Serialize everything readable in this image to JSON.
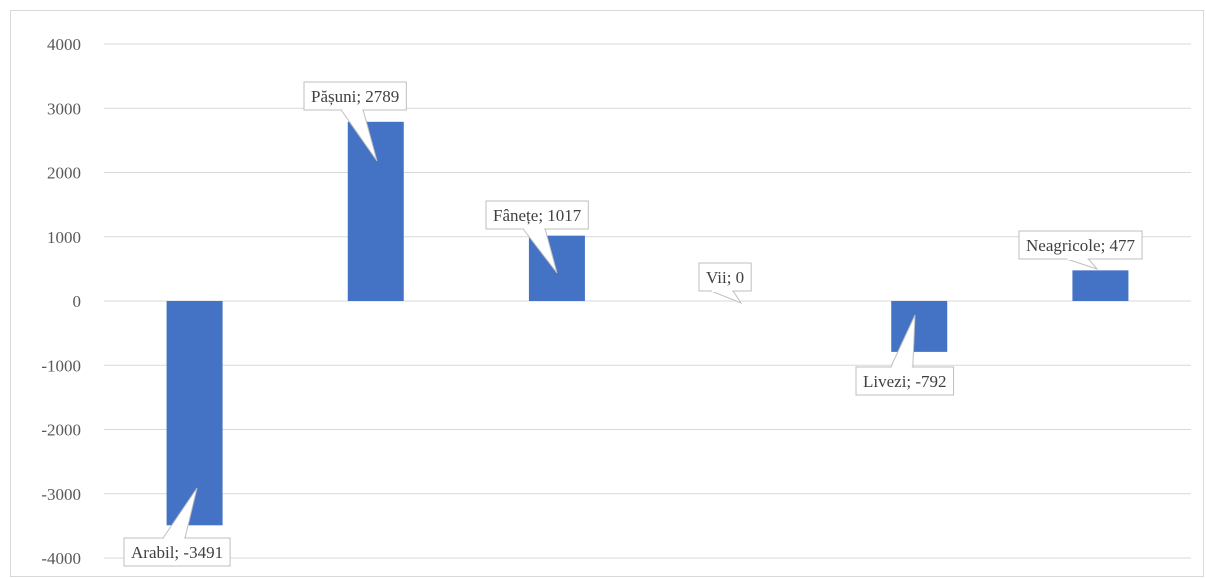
{
  "chart_data": {
    "type": "bar",
    "title": "",
    "xlabel": "",
    "ylabel": "",
    "ylim": [
      -4000,
      4000
    ],
    "yticks": [
      4000,
      3000,
      2000,
      1000,
      0,
      -1000,
      -2000,
      -3000,
      -4000
    ],
    "grid": true,
    "legend": "none",
    "bar_color": "#4472c4",
    "categories": [
      "Arabil",
      "Pășuni",
      "Fânețe",
      "Vii",
      "Livezi",
      "Neagricole"
    ],
    "values": [
      -3491,
      2789,
      1017,
      0,
      -792,
      477
    ],
    "data_labels": [
      "Arabil; -3491",
      "Pășuni; 2789",
      "Fânețe; 1017",
      "Vii; 0",
      "Livezi; -792",
      "Neagricole; 477"
    ]
  }
}
